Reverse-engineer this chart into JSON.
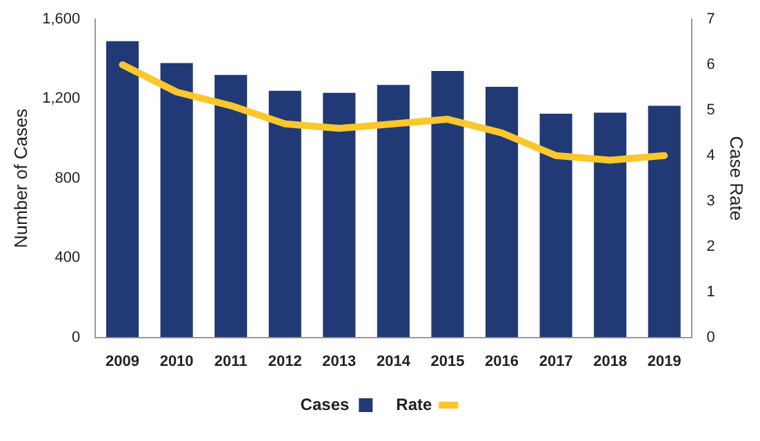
{
  "chart_data": {
    "type": "bar",
    "xlabel": null,
    "ylabel": "Number of Cases",
    "y2label": "Case Rate",
    "categories": [
      "2009",
      "2010",
      "2011",
      "2012",
      "2013",
      "2014",
      "2015",
      "2016",
      "2017",
      "2018",
      "2019"
    ],
    "series": [
      {
        "name": "Cases",
        "color": "#213a75",
        "values": [
          1490,
          1380,
          1320,
          1240,
          1230,
          1270,
          1340,
          1260,
          1125,
          1130,
          1165
        ]
      },
      {
        "name": "Rate",
        "type": "line",
        "axis": "y2",
        "color": "#fcc72c",
        "values": [
          6.0,
          5.4,
          5.1,
          4.7,
          4.6,
          4.7,
          4.8,
          4.5,
          4.0,
          3.9,
          4.0
        ]
      }
    ],
    "ylim": [
      0,
      1600
    ],
    "yticks": [
      {
        "value": 0,
        "label": "0"
      },
      {
        "value": 400,
        "label": "400"
      },
      {
        "value": 800,
        "label": "800"
      },
      {
        "value": 1200,
        "label": "1,200"
      },
      {
        "value": 1600,
        "label": "1,600"
      }
    ],
    "y2lim": [
      0,
      7
    ],
    "y2ticks": [
      0,
      1,
      2,
      3,
      4,
      5,
      6,
      7
    ],
    "grid": false,
    "legend": "bottom",
    "marker": "none"
  }
}
